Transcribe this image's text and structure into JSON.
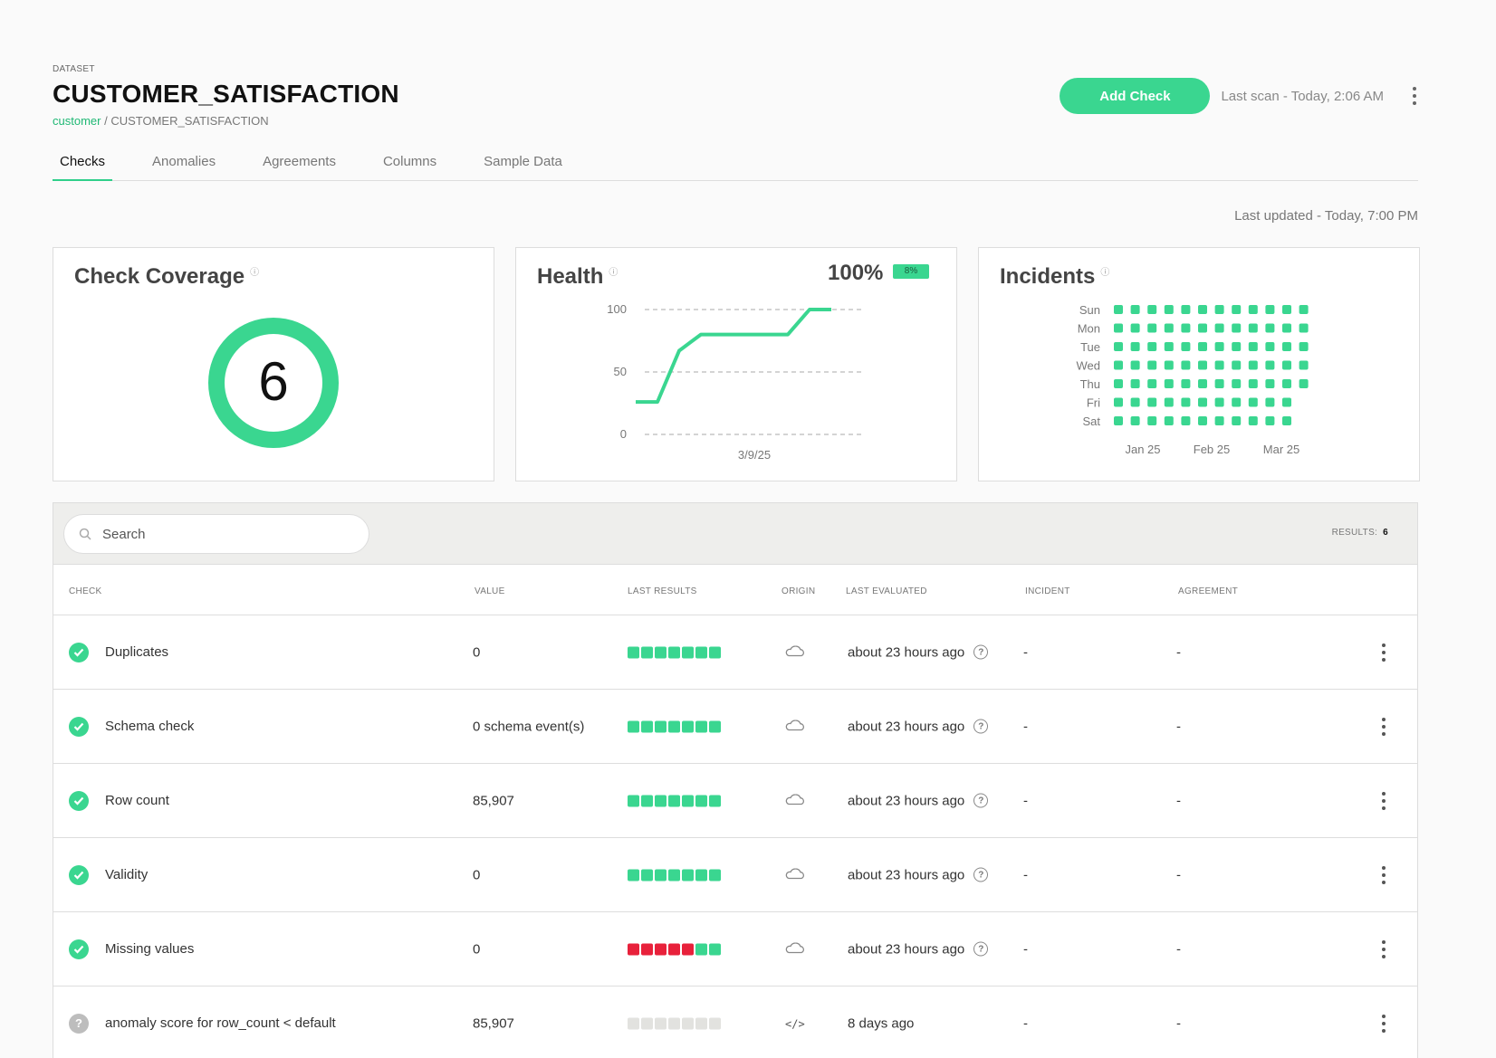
{
  "header": {
    "eyebrow": "DATASET",
    "title": "CUSTOMER_SATISFACTION",
    "breadcrumb_link": "customer",
    "breadcrumb_sep": " / ",
    "breadcrumb_current": "CUSTOMER_SATISFACTION",
    "add_check_label": "Add Check",
    "last_scan": "Last scan - Today, 2:06 AM"
  },
  "tabs": [
    {
      "label": "Checks",
      "active": true
    },
    {
      "label": "Anomalies",
      "active": false
    },
    {
      "label": "Agreements",
      "active": false
    },
    {
      "label": "Columns",
      "active": false
    },
    {
      "label": "Sample Data",
      "active": false
    }
  ],
  "last_updated": "Last updated - Today, 7:00 PM",
  "coverage": {
    "title": "Check Coverage",
    "info": "ⓘ",
    "value": "6"
  },
  "health": {
    "title": "Health",
    "info": "ⓘ",
    "value": "100%",
    "badge": "8%",
    "y_ticks": [
      "100",
      "50",
      "0"
    ],
    "x_label": "3/9/25",
    "series": [
      26,
      26,
      67,
      80,
      80,
      80,
      80,
      80,
      100,
      100
    ]
  },
  "incidents": {
    "title": "Incidents",
    "info": "ⓘ",
    "days": [
      "Sun",
      "Mon",
      "Tue",
      "Wed",
      "Thu",
      "Fri",
      "Sat"
    ],
    "weeks_per_day": [
      12,
      12,
      12,
      12,
      12,
      11,
      11
    ],
    "months": [
      "Jan 25",
      "Feb 25",
      "Mar 25"
    ],
    "color": "#3ad690"
  },
  "search": {
    "placeholder": "Search"
  },
  "results": {
    "label": "RESULTS:",
    "count": "6"
  },
  "columns": {
    "check": "CHECK",
    "value": "VALUE",
    "last_results": "LAST RESULTS",
    "origin": "ORIGIN",
    "last_evaluated": "LAST EVALUATED",
    "incident": "INCIDENT",
    "agreement": "AGREEMENT"
  },
  "colors": {
    "pass": "#3ad690",
    "fail": "#e8213b",
    "empty": "#e2e2df"
  },
  "rows": [
    {
      "name": "Duplicates",
      "value": "0",
      "results": [
        "pass",
        "pass",
        "pass",
        "pass",
        "pass",
        "pass",
        "pass"
      ],
      "origin": "cloud-icon",
      "evaluated": "about 23 hours ago",
      "incident": "-",
      "agreement": "-",
      "status": "pass"
    },
    {
      "name": "Schema check",
      "value": "0 schema event(s)",
      "results": [
        "pass",
        "pass",
        "pass",
        "pass",
        "pass",
        "pass",
        "pass"
      ],
      "origin": "cloud-icon",
      "evaluated": "about 23 hours ago",
      "incident": "-",
      "agreement": "-",
      "status": "pass"
    },
    {
      "name": "Row count",
      "value": "85,907",
      "results": [
        "pass",
        "pass",
        "pass",
        "pass",
        "pass",
        "pass",
        "pass"
      ],
      "origin": "cloud-icon",
      "evaluated": "about 23 hours ago",
      "incident": "-",
      "agreement": "-",
      "status": "pass"
    },
    {
      "name": "Validity",
      "value": "0",
      "results": [
        "pass",
        "pass",
        "pass",
        "pass",
        "pass",
        "pass",
        "pass"
      ],
      "origin": "cloud-icon",
      "evaluated": "about 23 hours ago",
      "incident": "-",
      "agreement": "-",
      "status": "pass"
    },
    {
      "name": "Missing values",
      "value": "0",
      "results": [
        "fail",
        "fail",
        "fail",
        "fail",
        "fail",
        "pass",
        "pass"
      ],
      "origin": "cloud-icon",
      "evaluated": "about 23 hours ago",
      "incident": "-",
      "agreement": "-",
      "status": "pass"
    },
    {
      "name": "anomaly score for row_count < default",
      "value": "85,907",
      "results": [
        "empty",
        "empty",
        "empty",
        "empty",
        "empty",
        "empty",
        "empty"
      ],
      "origin": "code-icon",
      "evaluated": "8 days ago",
      "incident": "-",
      "agreement": "-",
      "status": "unknown"
    }
  ]
}
